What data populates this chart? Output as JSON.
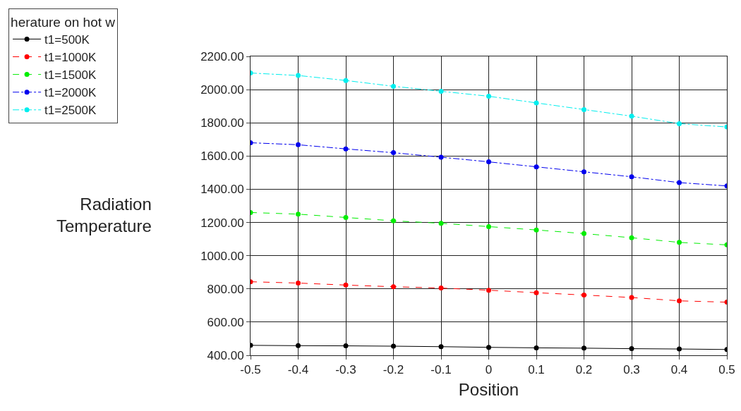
{
  "chart_data": {
    "type": "line",
    "xlabel": "Position",
    "ylabel": "Radiation\nTemperature",
    "legend_title": "herature on hot w",
    "x": [
      -0.5,
      -0.4,
      -0.3,
      -0.2,
      -0.1,
      0,
      0.1,
      0.2,
      0.3,
      0.4,
      0.5
    ],
    "series": [
      {
        "name": "t1=500K",
        "color": "#000000",
        "line_style": "solid",
        "values": [
          460,
          458,
          457,
          455,
          452,
          448,
          445,
          443,
          440,
          438,
          435
        ]
      },
      {
        "name": "t1=1000K",
        "color": "#ff0000",
        "line_style": "dashed",
        "values": [
          843,
          835,
          823,
          813,
          805,
          792,
          777,
          763,
          748,
          728,
          720
        ]
      },
      {
        "name": "t1=1500K",
        "color": "#00ee00",
        "line_style": "dashed",
        "values": [
          1260,
          1250,
          1230,
          1210,
          1195,
          1175,
          1155,
          1133,
          1108,
          1080,
          1065
        ]
      },
      {
        "name": "t1=2000K",
        "color": "#0000ee",
        "line_style": "dashdot",
        "values": [
          1680,
          1668,
          1643,
          1620,
          1593,
          1565,
          1535,
          1505,
          1475,
          1440,
          1420
        ]
      },
      {
        "name": "t1=2500K",
        "color": "#00eeee",
        "line_style": "dashdot",
        "values": [
          2100,
          2085,
          2055,
          2020,
          1990,
          1960,
          1920,
          1880,
          1840,
          1795,
          1775
        ]
      }
    ],
    "xlim": [
      -0.5,
      0.5
    ],
    "xticks": [
      -0.5,
      -0.4,
      -0.3,
      -0.2,
      -0.1,
      0,
      0.1,
      0.2,
      0.3,
      0.4,
      0.5
    ],
    "ylim": [
      400,
      2200
    ],
    "yticks": [
      {
        "value": 400,
        "label": "400.00"
      },
      {
        "value": 600,
        "label": "600.00"
      },
      {
        "value": 800,
        "label": "800.00"
      },
      {
        "value": 1000,
        "label": "1000.00"
      },
      {
        "value": 1200,
        "label": "1200.00"
      },
      {
        "value": 1400,
        "label": "1400.00"
      },
      {
        "value": 1600,
        "label": "1600.00"
      },
      {
        "value": 1800,
        "label": "1800.00"
      },
      {
        "value": 2000,
        "label": "2000.00"
      },
      {
        "value": 2200,
        "label": "2200.00"
      }
    ],
    "grid": true,
    "legend": "top left",
    "marker": "circle"
  }
}
